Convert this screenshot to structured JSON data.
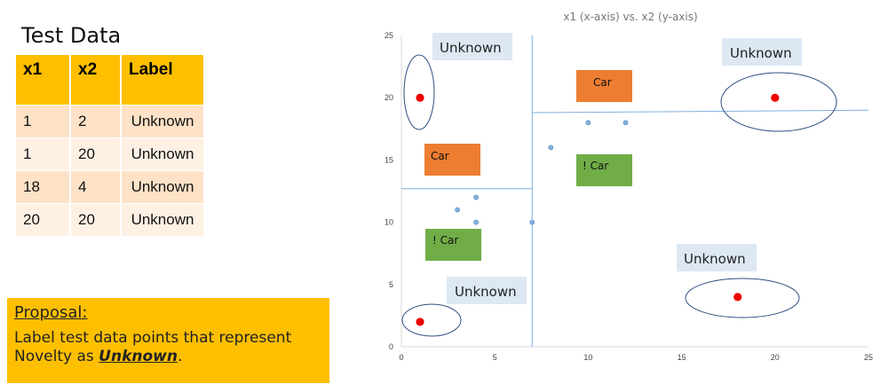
{
  "table": {
    "title": "Test Data",
    "headers": [
      "x1",
      "x2",
      "Label"
    ],
    "rows": [
      [
        "1",
        "2",
        "Unknown"
      ],
      [
        "1",
        "20",
        "Unknown"
      ],
      [
        "18",
        "4",
        "Unknown"
      ],
      [
        "20",
        "20",
        "Unknown"
      ]
    ]
  },
  "proposal": {
    "heading": "Proposal:",
    "text_before": "Label test data points that represent Novelty as ",
    "emphasis": "Unknown",
    "text_after": "."
  },
  "colors": {
    "table_header": "#fdbf00",
    "proposal_bg": "#fdbf00",
    "test_point": "#ee0000",
    "train_point": "#7fb0de",
    "car_box": "#ed7d31",
    "not_car_box": "#70ad47",
    "unknown_box": "#dde8f3",
    "outline": "#2f4f7f",
    "divider": "#7fb0de"
  },
  "chart_data": {
    "type": "scatter",
    "title": "x1 (x-axis) vs. x2 (y-axis)",
    "xlim": [
      0,
      25
    ],
    "ylim": [
      0,
      25
    ],
    "xticks": [
      0,
      5,
      10,
      15,
      20,
      25
    ],
    "yticks": [
      0,
      5,
      10,
      15,
      20,
      25
    ],
    "grid": false,
    "series": [
      {
        "points": [
          [
            3,
            11
          ],
          [
            4,
            12
          ],
          [
            4,
            10
          ],
          [
            7,
            10
          ],
          [
            8,
            16
          ],
          [
            10,
            18
          ],
          [
            12,
            18
          ]
        ]
      },
      {
        "points": [
          [
            1,
            2
          ],
          [
            1,
            20
          ],
          [
            18,
            4
          ],
          [
            20,
            20
          ]
        ]
      }
    ],
    "boundaries": [
      {
        "x": [
          7,
          7
        ],
        "y": [
          0,
          25
        ]
      },
      {
        "x": [
          0,
          7
        ],
        "y": [
          12.7,
          12.7
        ]
      },
      {
        "x": [
          7,
          25
        ],
        "y": [
          18.8,
          19
        ]
      }
    ],
    "region_labels": [
      "Car",
      "! Car",
      "Car",
      "! Car"
    ],
    "annotations": [
      "Unknown",
      "Unknown",
      "Unknown",
      "Unknown"
    ]
  }
}
